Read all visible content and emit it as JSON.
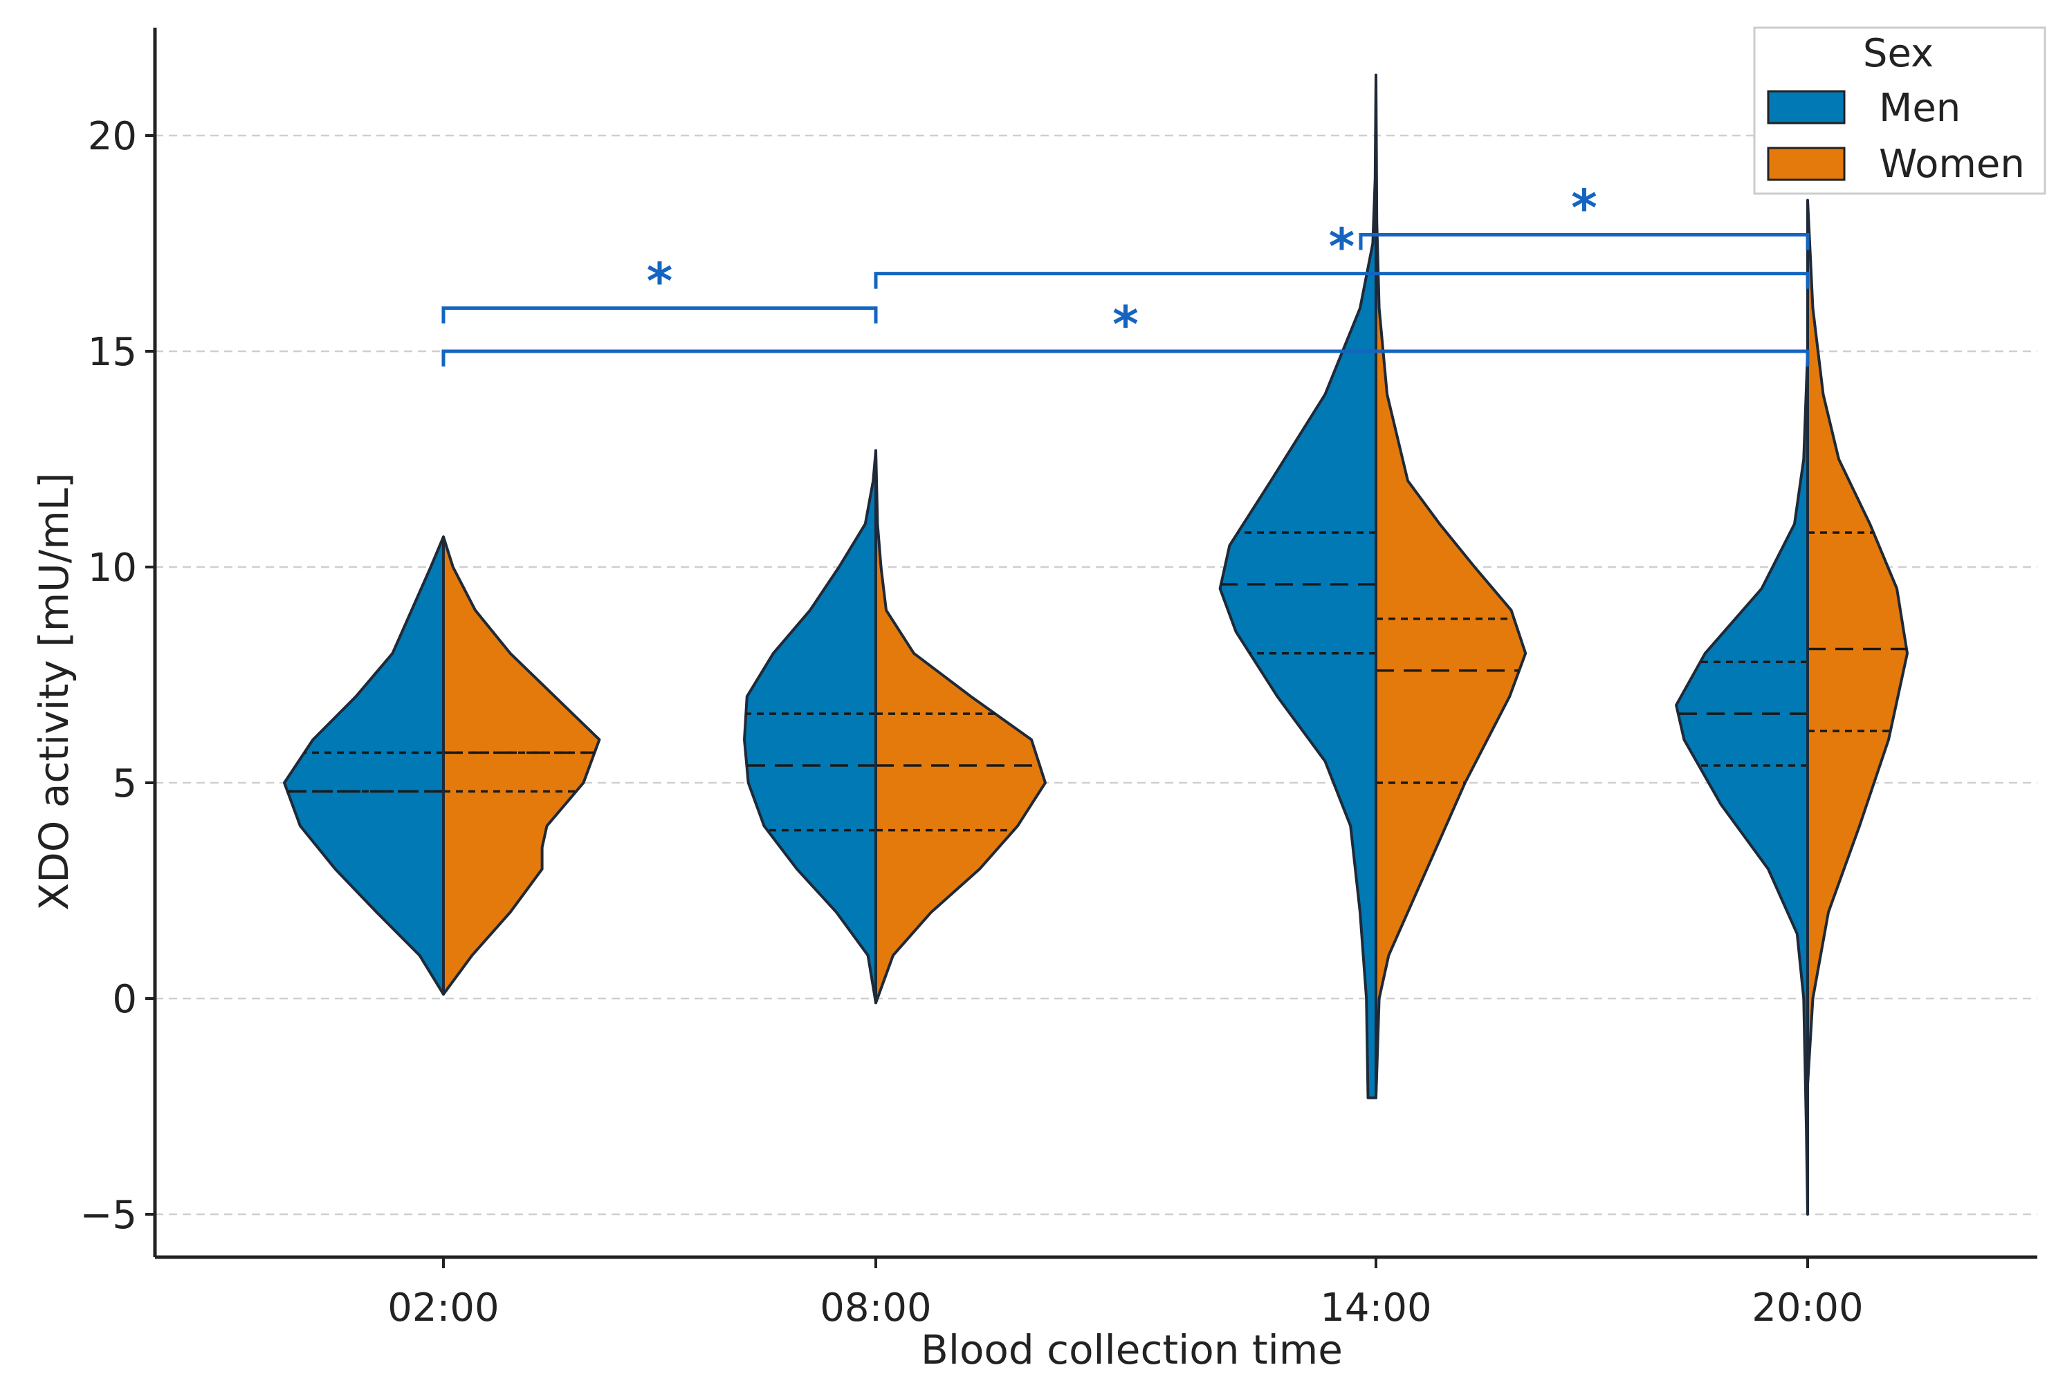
{
  "chart_data": {
    "type": "violin",
    "split": true,
    "title": "",
    "xlabel": "Blood collection time",
    "ylabel": "XDO activity [mU/mL]",
    "ylim": [
      -6,
      22.5
    ],
    "yticks": [
      -5,
      0,
      5,
      10,
      15,
      20
    ],
    "ytick_labels": [
      "−5",
      "0",
      "5",
      "10",
      "15",
      "20"
    ],
    "grid": "horizontal dashed",
    "categories": [
      "02:00",
      "08:00",
      "14:00",
      "20:00"
    ],
    "legend": {
      "title": "Sex",
      "position": "top-right"
    },
    "inner": "quartiles",
    "series": [
      {
        "name": "Men",
        "color": "#0179b5",
        "violins": [
          {
            "category": "02:00",
            "min": 0.1,
            "max": 10.7,
            "q1": 4.8,
            "median": 4.8,
            "q3": 5.7,
            "profile": [
              [
                0.1,
                0.0
              ],
              [
                1.0,
                0.15
              ],
              [
                2.0,
                0.42
              ],
              [
                3.0,
                0.68
              ],
              [
                4.0,
                0.9
              ],
              [
                5.0,
                1.0
              ],
              [
                6.0,
                0.82
              ],
              [
                7.0,
                0.55
              ],
              [
                8.0,
                0.32
              ],
              [
                9.0,
                0.2
              ],
              [
                10.0,
                0.08
              ],
              [
                10.7,
                0.0
              ]
            ]
          },
          {
            "category": "08:00",
            "min": -0.1,
            "max": 12.7,
            "q1": 3.9,
            "median": 5.4,
            "q3": 6.6,
            "profile": [
              [
                -0.1,
                0.0
              ],
              [
                1.0,
                0.06
              ],
              [
                2.0,
                0.3
              ],
              [
                3.0,
                0.6
              ],
              [
                4.0,
                0.85
              ],
              [
                5.0,
                0.97
              ],
              [
                6.0,
                1.0
              ],
              [
                7.0,
                0.98
              ],
              [
                8.0,
                0.78
              ],
              [
                9.0,
                0.5
              ],
              [
                10.0,
                0.28
              ],
              [
                11.0,
                0.08
              ],
              [
                12.0,
                0.02
              ],
              [
                12.7,
                0.0
              ]
            ]
          },
          {
            "category": "14:00",
            "min": -2.3,
            "max": 21.4,
            "q1": 8.0,
            "median": 9.6,
            "q3": 10.8,
            "profile": [
              [
                -2.3,
                0.05
              ],
              [
                0.0,
                0.06
              ],
              [
                2.0,
                0.1
              ],
              [
                4.0,
                0.16
              ],
              [
                5.5,
                0.32
              ],
              [
                7.0,
                0.62
              ],
              [
                8.5,
                0.88
              ],
              [
                9.5,
                0.98
              ],
              [
                10.5,
                0.92
              ],
              [
                12.0,
                0.66
              ],
              [
                14.0,
                0.32
              ],
              [
                16.0,
                0.1
              ],
              [
                17.5,
                0.02
              ],
              [
                19.0,
                0.005
              ],
              [
                21.4,
                0.0
              ]
            ]
          },
          {
            "category": "20:00",
            "min": -5.0,
            "max": 15.0,
            "q1": 5.4,
            "median": 6.6,
            "q3": 7.8,
            "profile": [
              [
                -5.0,
                0.0
              ],
              [
                -3.0,
                0.01
              ],
              [
                0.0,
                0.03
              ],
              [
                1.5,
                0.08
              ],
              [
                3.0,
                0.3
              ],
              [
                4.5,
                0.66
              ],
              [
                6.0,
                0.94
              ],
              [
                6.8,
                1.0
              ],
              [
                8.0,
                0.78
              ],
              [
                9.5,
                0.35
              ],
              [
                11.0,
                0.1
              ],
              [
                12.5,
                0.03
              ],
              [
                15.0,
                0.0
              ]
            ]
          }
        ]
      },
      {
        "name": "Women",
        "color": "#e57a0c",
        "violins": [
          {
            "category": "02:00",
            "min": 0.1,
            "max": 10.7,
            "q1": 4.8,
            "median": 5.7,
            "q3": 5.7,
            "profile": [
              [
                0.1,
                0.0
              ],
              [
                1.0,
                0.18
              ],
              [
                2.0,
                0.42
              ],
              [
                3.0,
                0.62
              ],
              [
                3.5,
                0.62
              ],
              [
                4.0,
                0.65
              ],
              [
                5.0,
                0.88
              ],
              [
                6.0,
                0.98
              ],
              [
                7.0,
                0.7
              ],
              [
                8.0,
                0.42
              ],
              [
                9.0,
                0.2
              ],
              [
                10.0,
                0.06
              ],
              [
                10.7,
                0.0
              ]
            ]
          },
          {
            "category": "08:00",
            "min": -0.1,
            "max": 12.7,
            "q1": 3.9,
            "median": 5.4,
            "q3": 6.6,
            "profile": [
              [
                -0.1,
                0.0
              ],
              [
                1.0,
                0.1
              ],
              [
                2.0,
                0.32
              ],
              [
                3.0,
                0.6
              ],
              [
                4.0,
                0.82
              ],
              [
                5.0,
                0.98
              ],
              [
                6.0,
                0.9
              ],
              [
                7.0,
                0.55
              ],
              [
                8.0,
                0.22
              ],
              [
                9.0,
                0.06
              ],
              [
                10.0,
                0.03
              ],
              [
                11.0,
                0.01
              ],
              [
                12.7,
                0.0
              ]
            ]
          },
          {
            "category": "14:00",
            "min": -2.3,
            "max": 21.4,
            "q1": 5.0,
            "median": 7.6,
            "q3": 8.8,
            "profile": [
              [
                -2.3,
                0.0
              ],
              [
                0.0,
                0.02
              ],
              [
                1.0,
                0.08
              ],
              [
                3.0,
                0.32
              ],
              [
                5.0,
                0.56
              ],
              [
                7.0,
                0.84
              ],
              [
                8.0,
                0.94
              ],
              [
                9.0,
                0.85
              ],
              [
                10.0,
                0.62
              ],
              [
                11.0,
                0.4
              ],
              [
                12.0,
                0.2
              ],
              [
                14.0,
                0.07
              ],
              [
                16.0,
                0.02
              ],
              [
                18.0,
                0.005
              ],
              [
                21.4,
                0.0
              ]
            ]
          },
          {
            "category": "20:00",
            "min": -2.0,
            "max": 18.5,
            "q1": 6.2,
            "median": 8.1,
            "q3": 10.8,
            "profile": [
              [
                -2.0,
                0.0
              ],
              [
                0.0,
                0.05
              ],
              [
                2.0,
                0.2
              ],
              [
                4.0,
                0.5
              ],
              [
                6.0,
                0.78
              ],
              [
                8.0,
                0.96
              ],
              [
                9.5,
                0.86
              ],
              [
                11.0,
                0.6
              ],
              [
                12.5,
                0.3
              ],
              [
                14.0,
                0.15
              ],
              [
                16.0,
                0.05
              ],
              [
                18.5,
                0.0
              ]
            ]
          }
        ]
      }
    ],
    "annotations": [
      {
        "label": "*",
        "from": "02:00",
        "to": "08:00",
        "y": 16.0
      },
      {
        "label": "*",
        "from": "02:00",
        "to": "20:00",
        "y": 15.0
      },
      {
        "label": "*",
        "from": "08:00",
        "to": "20:00",
        "y": 16.8
      },
      {
        "label": "*",
        "from": "14:00",
        "to": "20:00",
        "y": 17.7
      }
    ],
    "annotation_color": "#1565c0"
  }
}
